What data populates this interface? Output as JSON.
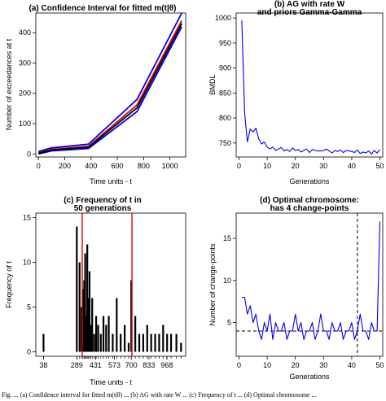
{
  "figure": {
    "caption": "Fig. ... (a) Confidence interval for fitted m(t|θ) ... (b) AG with rate W ... (c) Frequency of t ... (d) Optimal chromosome ..."
  },
  "chart_data": [
    {
      "id": "a",
      "type": "line",
      "title": "(a) Confidence Interval for fitted m(t|θ)",
      "xlabel": "Time units - t",
      "ylabel": "Number of exceedances at t",
      "xlim": [
        -20,
        1120
      ],
      "ylim": [
        -10,
        465
      ],
      "xticks": [
        0,
        200,
        400,
        600,
        800,
        1000
      ],
      "yticks": [
        0,
        100,
        200,
        300,
        400
      ],
      "series": [
        {
          "color": "#0000ee",
          "x": [
            0,
            100,
            380,
            750,
            1090
          ],
          "y": [
            8,
            20,
            32,
            180,
            465
          ]
        },
        {
          "color": "#dd0000",
          "x": [
            0,
            100,
            380,
            750,
            1090
          ],
          "y": [
            4,
            15,
            25,
            162,
            440
          ]
        },
        {
          "color": "#0000ee",
          "x": [
            0,
            100,
            380,
            750,
            1090
          ],
          "y": [
            0,
            10,
            18,
            140,
            420
          ]
        },
        {
          "color": "#000000",
          "x": [
            0,
            100,
            380,
            750,
            1090
          ],
          "y": [
            2,
            13,
            22,
            152,
            430
          ]
        }
      ]
    },
    {
      "id": "b",
      "type": "line",
      "title": "(b) AG with rate W\nand priors Gamma-Gamma",
      "xlabel": "Generations",
      "ylabel": "BMDL",
      "xlim": [
        -1,
        51
      ],
      "ylim": [
        722,
        1010
      ],
      "xticks": [
        0,
        10,
        20,
        30,
        40,
        50
      ],
      "yticks": [
        750,
        800,
        850,
        900,
        950,
        1000
      ],
      "series": [
        {
          "color": "#0000ee",
          "x": [
            1,
            2,
            3,
            4,
            5,
            6,
            7,
            8,
            9,
            10,
            11,
            12,
            13,
            14,
            15,
            16,
            17,
            18,
            19,
            20,
            21,
            22,
            23,
            24,
            25,
            26,
            27,
            28,
            29,
            30,
            31,
            32,
            33,
            34,
            35,
            36,
            37,
            38,
            39,
            40,
            41,
            42,
            43,
            44,
            45,
            46,
            47,
            48,
            49,
            50
          ],
          "y": [
            995,
            810,
            752,
            778,
            772,
            780,
            758,
            748,
            752,
            742,
            738,
            742,
            735,
            738,
            741,
            734,
            737,
            733,
            740,
            735,
            737,
            732,
            735,
            738,
            731,
            737,
            735,
            734,
            734,
            735,
            738,
            734,
            730,
            735,
            733,
            736,
            731,
            735,
            734,
            733,
            731,
            736,
            729,
            732,
            730,
            734,
            728,
            735,
            730,
            737
          ]
        }
      ]
    },
    {
      "id": "c",
      "type": "bar",
      "title": "(c) Frequency of t in\n50 generations",
      "xlabel": "Time units - t",
      "ylabel": "Frequency of t",
      "xlim": [
        -20,
        1110
      ],
      "ylim": [
        -0.5,
        15.5
      ],
      "yticks": [
        0,
        5,
        10,
        15
      ],
      "xtick_values": [
        38,
        289,
        431,
        573,
        700,
        833,
        968
      ],
      "xtick_labels": [
        "38",
        "289",
        "431",
        "573",
        "700",
        "833",
        "968"
      ],
      "vlines": [
        {
          "x": 330,
          "color": "#dd0000"
        },
        {
          "x": 705,
          "color": "#dd0000"
        }
      ],
      "bars": {
        "x": [
          38,
          289,
          310,
          325,
          335,
          345,
          352,
          360,
          368,
          375,
          385,
          395,
          405,
          420,
          435,
          450,
          470,
          490,
          510,
          530,
          560,
          590,
          620,
          650,
          680,
          700,
          730,
          760,
          790,
          820,
          850,
          880,
          910,
          940,
          970,
          1000,
          1040,
          1075
        ],
        "y": [
          2,
          14,
          10,
          5,
          7,
          8,
          11,
          4,
          12,
          6,
          9,
          3,
          6,
          2,
          4,
          3,
          2,
          4,
          3,
          4,
          2,
          6,
          2,
          3,
          1,
          8,
          4,
          2,
          2,
          3,
          2,
          2,
          2,
          3,
          2,
          2,
          2,
          1
        ]
      }
    },
    {
      "id": "d",
      "type": "line",
      "title": "(d) Optimal chromosome:\nhas 4 change-points",
      "xlabel": "Generations",
      "ylabel": "Number of change-points",
      "xlim": [
        -1,
        51
      ],
      "ylim": [
        1,
        18
      ],
      "xticks": [
        0,
        10,
        20,
        30,
        40,
        50
      ],
      "yticks": [
        5,
        10,
        15
      ],
      "hline": 4,
      "vline": 42,
      "series": [
        {
          "color": "#0000ee",
          "x": [
            1,
            2,
            3,
            4,
            5,
            6,
            7,
            8,
            9,
            10,
            11,
            12,
            13,
            14,
            15,
            16,
            17,
            18,
            19,
            20,
            21,
            22,
            23,
            24,
            25,
            26,
            27,
            28,
            29,
            30,
            31,
            32,
            33,
            34,
            35,
            36,
            37,
            38,
            39,
            40,
            41,
            42,
            43,
            44,
            45,
            46,
            47,
            48,
            49,
            50
          ],
          "y": [
            8,
            8,
            6,
            7,
            5,
            6,
            4,
            3,
            5,
            4,
            6,
            3,
            5,
            4,
            4,
            5,
            3,
            4,
            4,
            6,
            4,
            5,
            3,
            4,
            4,
            5,
            3,
            4,
            6,
            4,
            4,
            3,
            5,
            4,
            4,
            5,
            3,
            4,
            4,
            5,
            3,
            4,
            6,
            4,
            4,
            3,
            5,
            4,
            4,
            17
          ]
        }
      ]
    }
  ]
}
